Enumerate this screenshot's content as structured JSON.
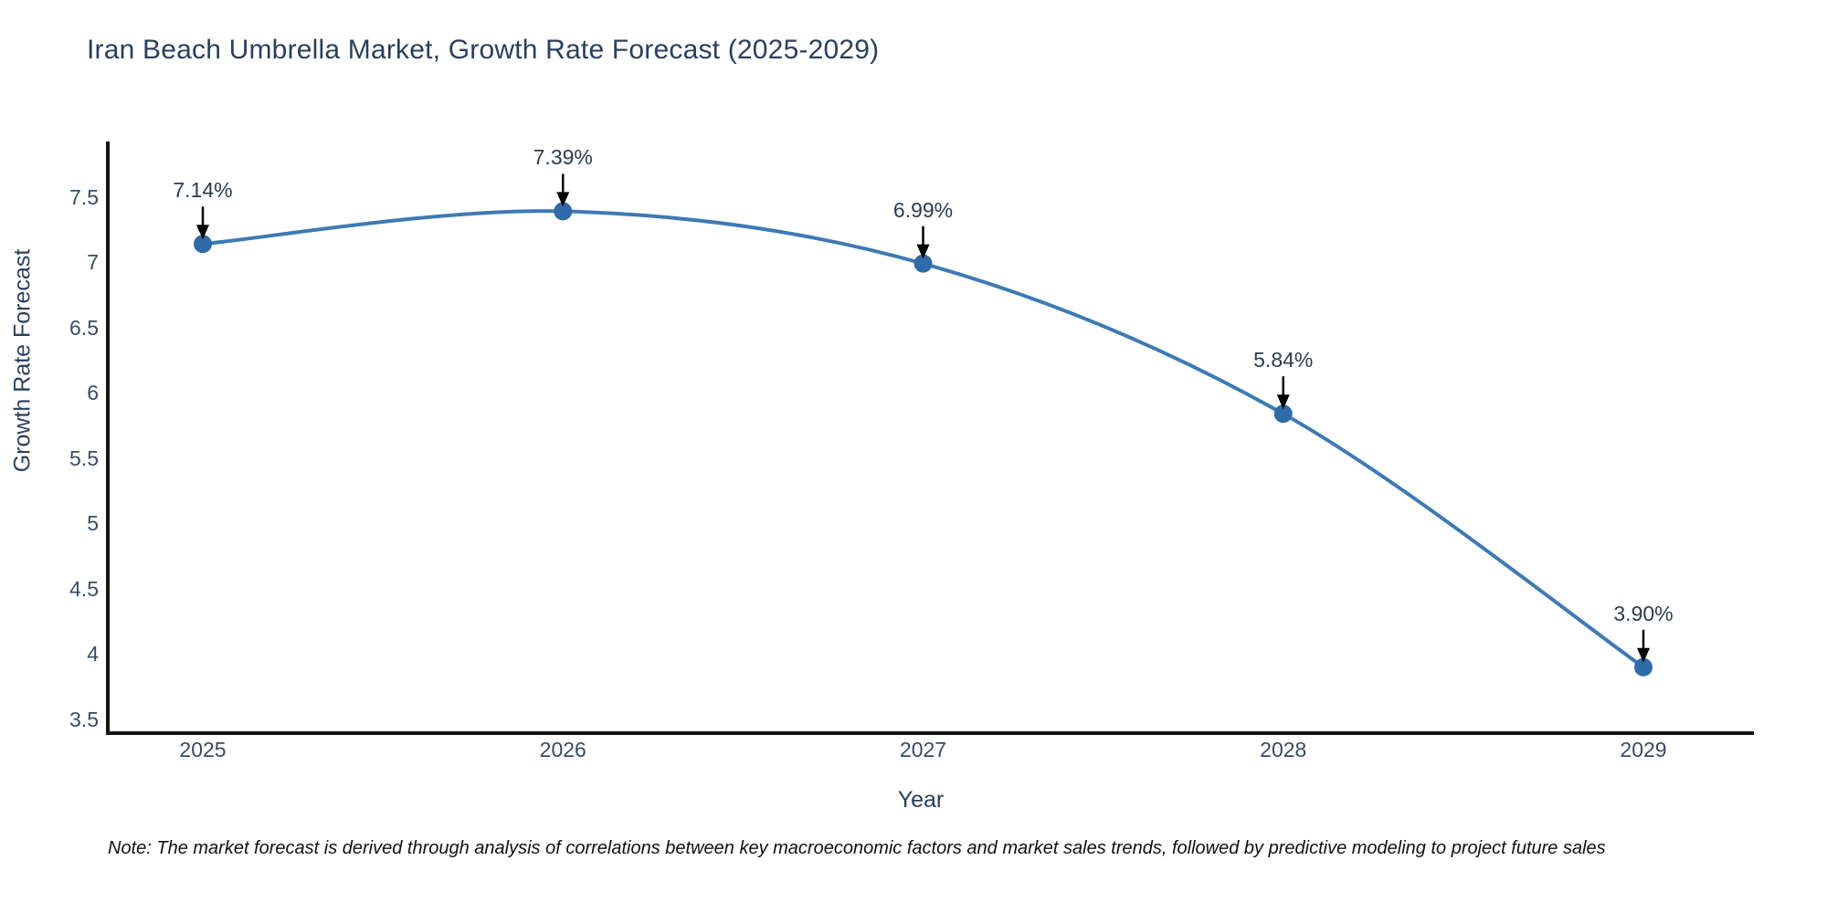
{
  "chart_data": {
    "type": "line",
    "title": "Iran Beach Umbrella Market, Growth Rate Forecast (2025-2029)",
    "xlabel": "Year",
    "ylabel": "Growth Rate Forecast",
    "categories": [
      "2025",
      "2026",
      "2027",
      "2028",
      "2029"
    ],
    "x": [
      2025,
      2026,
      2027,
      2028,
      2029
    ],
    "series": [
      {
        "name": "Growth Rate Forecast",
        "values": [
          7.14,
          7.39,
          6.99,
          5.84,
          3.9
        ]
      }
    ],
    "values": [
      7.14,
      7.39,
      6.99,
      5.84,
      3.9
    ],
    "point_labels": [
      "7.14%",
      "7.39%",
      "6.99%",
      "5.84%",
      "3.90%"
    ],
    "ylim": [
      3.4,
      7.9
    ],
    "yticks": [
      7.5,
      7,
      6.5,
      6,
      5.5,
      5,
      4.5,
      4,
      3.5
    ],
    "ytick_labels": [
      "7.5",
      "7",
      "6.5",
      "6",
      "5.5",
      "5",
      "4.5",
      "4",
      "3.5"
    ],
    "grid": false,
    "legend": "none",
    "annotation_style": "black down arrows from labels to markers",
    "line_color": "#3d7ab5",
    "marker_color": "#2e6ba8"
  },
  "footnote": "Note: The market forecast is derived through analysis of correlations between key macroeconomic factors and market sales trends, followed by predictive modeling to project future sales",
  "colors": {
    "title-color": "#2a3f5f",
    "tick-color": "#3c4a63",
    "ann-color": "#2f3b4c",
    "spine-color": "#161616",
    "background": "#ffffff"
  }
}
